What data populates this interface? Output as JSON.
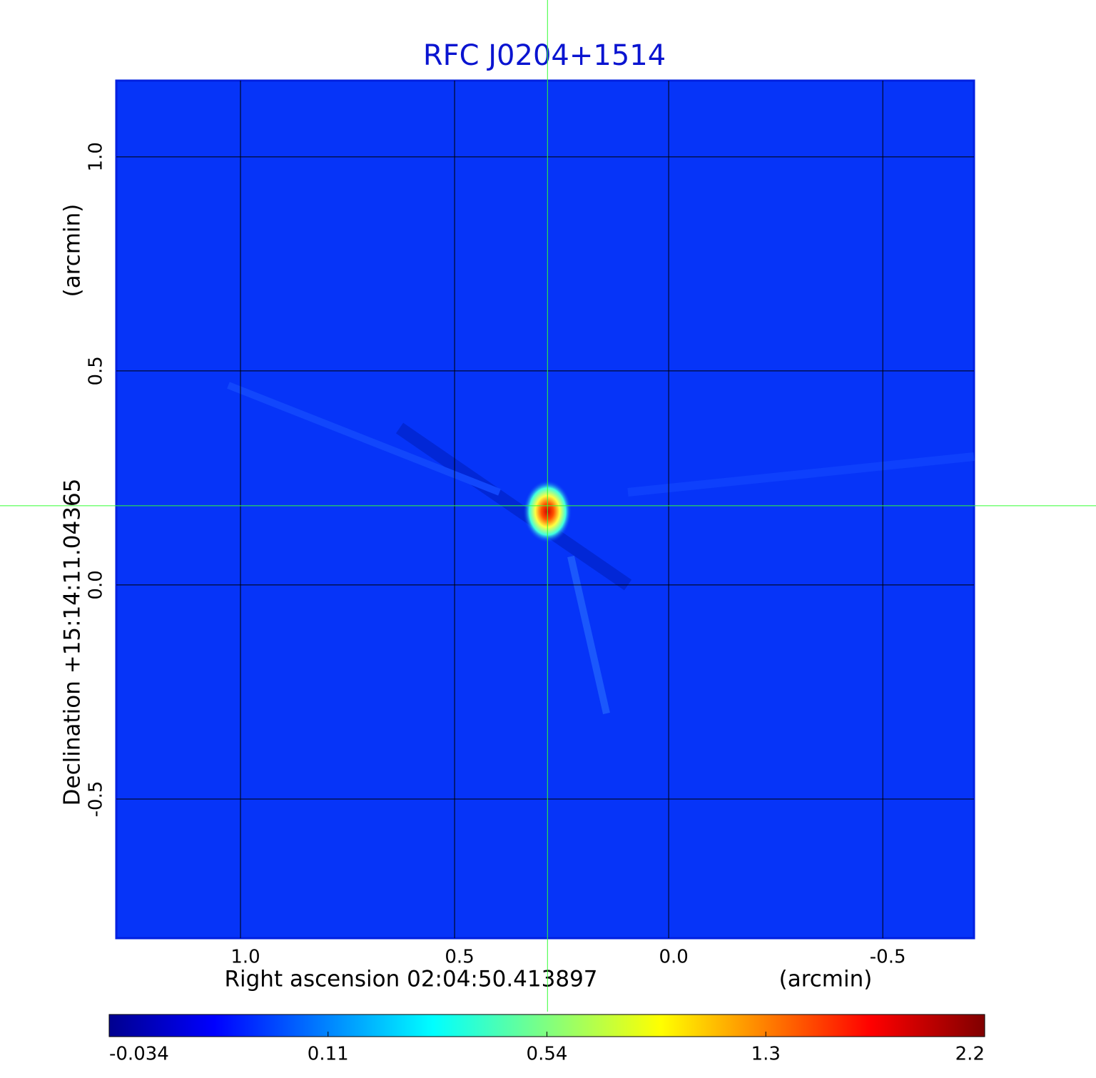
{
  "chart_data": {
    "type": "image",
    "title": "RFC J0204+1514",
    "xlabel": "Right ascension  02:04:50.413897",
    "xunit": "(arcmin)",
    "ylabel": "Declination  +15:14:11.04365",
    "yunit": "(arcmin)",
    "xlim": [
      1.29,
      -0.713
    ],
    "ylim": [
      -0.825,
      1.178
    ],
    "xticks": [
      {
        "value": 1,
        "label": "1.0"
      },
      {
        "value": 0.5,
        "label": "0.5"
      },
      {
        "value": 0,
        "label": "0.0"
      },
      -0.5
    ],
    "yticks": [
      {
        "value": 1,
        "label": "1.0"
      },
      {
        "value": 0.5,
        "label": "0.5"
      },
      {
        "value": 0,
        "label": "0.0"
      },
      -0.5
    ],
    "grid": true,
    "crosshair": {
      "x": 0.283,
      "y": 0.185,
      "color": "#33ff33"
    },
    "colormap": "jet",
    "clim": [
      -0.034,
      2.2
    ],
    "cticks": [
      -0.034,
      0.11,
      0.54,
      1.3,
      2.2
    ]
  }
}
